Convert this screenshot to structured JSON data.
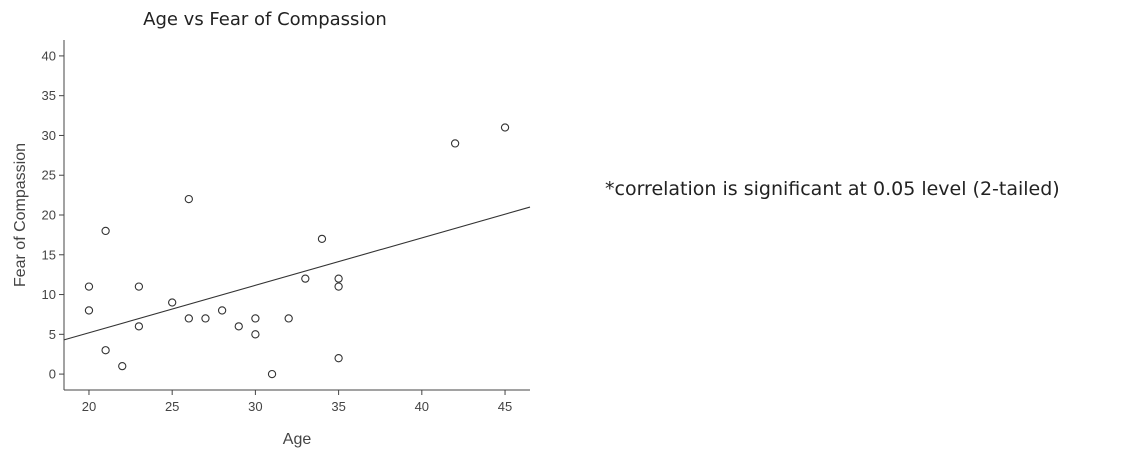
{
  "chart_data": {
    "type": "scatter",
    "title": "Age vs Fear of Compassion",
    "xlabel": "Age",
    "ylabel": "Fear of Compassion",
    "xlim": [
      18.5,
      46.5
    ],
    "ylim": [
      -2,
      42
    ],
    "xticks": [
      "20",
      "25",
      "30",
      "35",
      "40",
      "45"
    ],
    "yticks": [
      "0",
      "5",
      "10",
      "15",
      "20",
      "25",
      "30",
      "35",
      "40"
    ],
    "points": [
      {
        "x": 20,
        "y": 11
      },
      {
        "x": 20,
        "y": 8
      },
      {
        "x": 21,
        "y": 18
      },
      {
        "x": 21,
        "y": 3
      },
      {
        "x": 22,
        "y": 1
      },
      {
        "x": 23,
        "y": 11
      },
      {
        "x": 23,
        "y": 6
      },
      {
        "x": 25,
        "y": 9
      },
      {
        "x": 26,
        "y": 22
      },
      {
        "x": 26,
        "y": 7
      },
      {
        "x": 27,
        "y": 7
      },
      {
        "x": 28,
        "y": 8
      },
      {
        "x": 29,
        "y": 6
      },
      {
        "x": 30,
        "y": 7
      },
      {
        "x": 30,
        "y": 5
      },
      {
        "x": 31,
        "y": 0
      },
      {
        "x": 32,
        "y": 7
      },
      {
        "x": 33,
        "y": 12
      },
      {
        "x": 34,
        "y": 17
      },
      {
        "x": 35,
        "y": 12
      },
      {
        "x": 35,
        "y": 11
      },
      {
        "x": 35,
        "y": 2
      },
      {
        "x": 42,
        "y": 29
      },
      {
        "x": 45,
        "y": 31
      }
    ],
    "fit_line": {
      "x": [
        18.5,
        46.5
      ],
      "y": [
        4.3,
        21
      ]
    },
    "grid": false,
    "legend": "none"
  },
  "note": "*correlation is significant at 0.05 level (2-tailed)"
}
